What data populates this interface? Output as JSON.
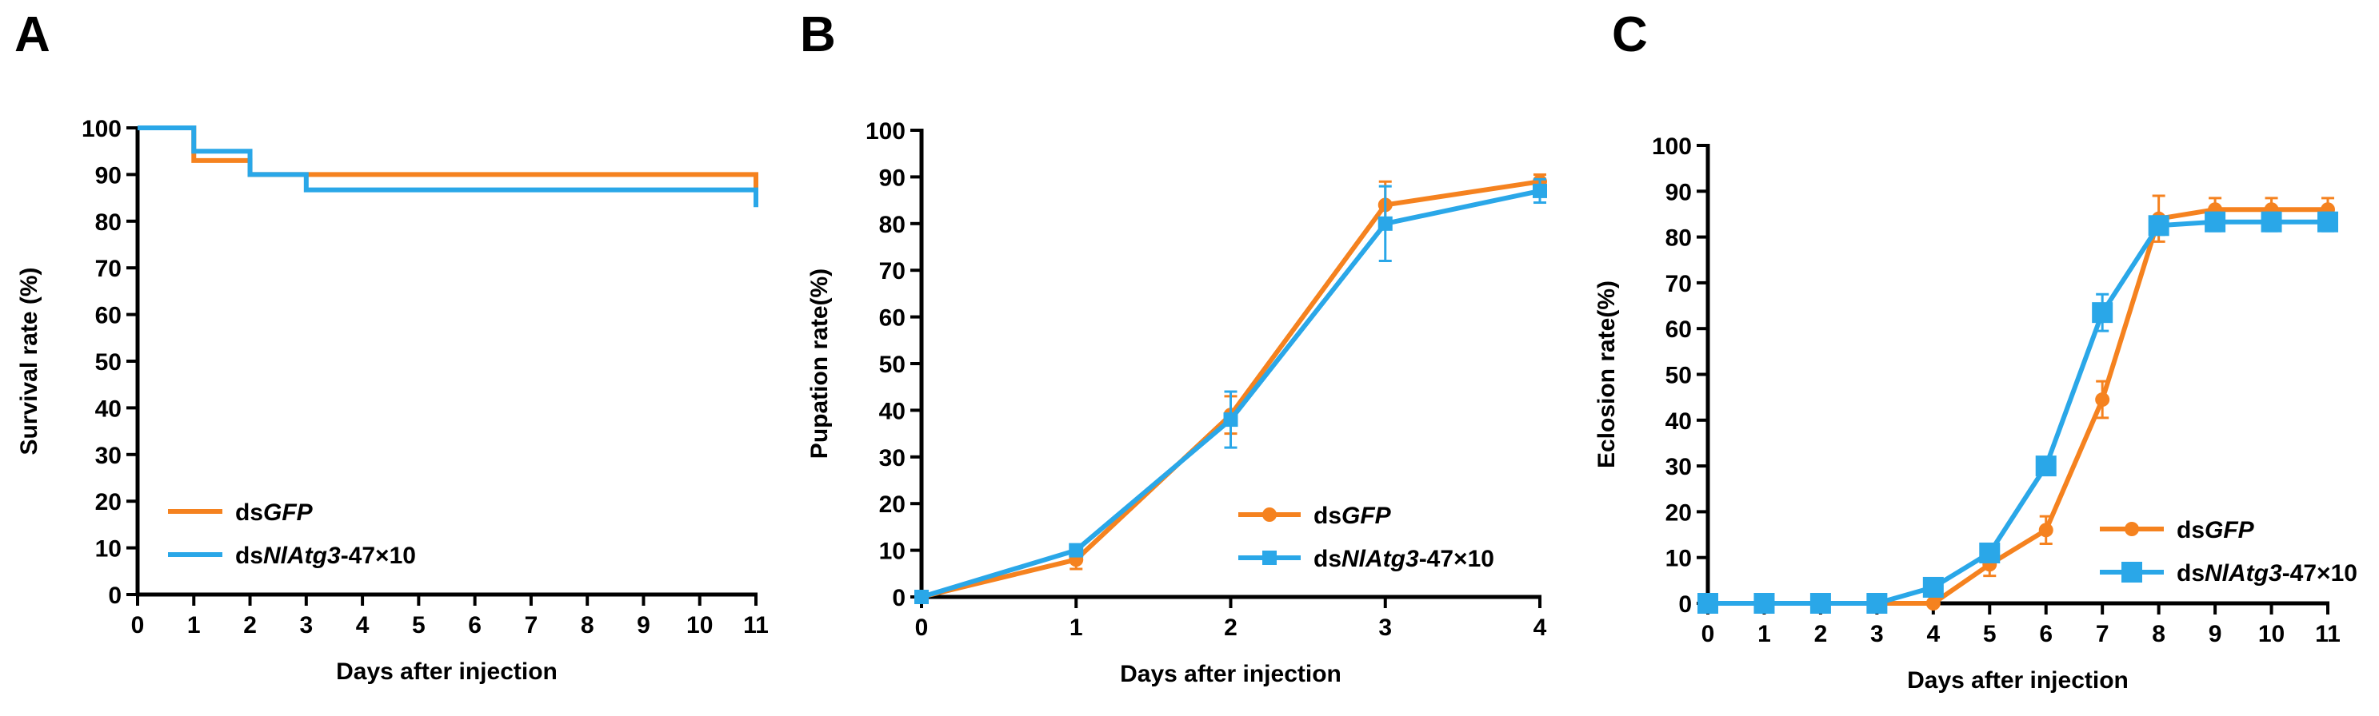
{
  "colors": {
    "orange": "#f5821f",
    "blue": "#2aa7e8",
    "axis": "#000000"
  },
  "chart_data": [
    {
      "panel": "A",
      "type": "line",
      "step": true,
      "title": "",
      "xlabel": "Days after injection",
      "ylabel": "Survival rate (%)",
      "xlim": [
        0,
        11
      ],
      "ylim": [
        0,
        100
      ],
      "xticks": [
        0,
        1,
        2,
        3,
        4,
        5,
        6,
        7,
        8,
        9,
        10,
        11
      ],
      "yticks": [
        0,
        10,
        20,
        30,
        40,
        50,
        60,
        70,
        80,
        90,
        100
      ],
      "grid": false,
      "legend_position": "bottom-left",
      "series": [
        {
          "name_prefix": "ds",
          "name_italic": "GFP",
          "name_suffix": "",
          "color": "#f5821f",
          "marker": "none",
          "x": [
            0,
            1,
            2,
            11
          ],
          "y": [
            100,
            93,
            90,
            90
          ],
          "end_drop": 86
        },
        {
          "name_prefix": "ds",
          "name_italic": "NlAtg3",
          "name_suffix": "-47×10",
          "color": "#2aa7e8",
          "marker": "none",
          "x": [
            0,
            1,
            2,
            3,
            11
          ],
          "y": [
            100,
            95,
            90,
            86.7,
            86.7
          ],
          "end_drop": 83
        }
      ]
    },
    {
      "panel": "B",
      "type": "line",
      "title": "",
      "xlabel": "Days after injection",
      "ylabel": "Pupation rate(%)",
      "xlim": [
        0,
        4
      ],
      "ylim": [
        0,
        100
      ],
      "xticks": [
        0,
        1,
        2,
        3,
        4
      ],
      "yticks": [
        0,
        10,
        20,
        30,
        40,
        50,
        60,
        70,
        80,
        90,
        100
      ],
      "grid": false,
      "legend_position": "bottom-right",
      "series": [
        {
          "name_prefix": "ds",
          "name_italic": "GFP",
          "name_suffix": "",
          "color": "#f5821f",
          "marker": "circle",
          "x": [
            0,
            1,
            2,
            3,
            4
          ],
          "y": [
            0,
            8,
            39,
            84,
            89
          ],
          "err": [
            0,
            2,
            4,
            5,
            1.5
          ]
        },
        {
          "name_prefix": "ds",
          "name_italic": "NlAtg3",
          "name_suffix": "-47×10",
          "color": "#2aa7e8",
          "marker": "square",
          "x": [
            0,
            1,
            2,
            3,
            4
          ],
          "y": [
            0,
            10,
            38,
            80,
            87
          ],
          "err": [
            0,
            1,
            6,
            8,
            2.5
          ]
        }
      ]
    },
    {
      "panel": "C",
      "type": "line",
      "title": "",
      "xlabel": "Days after injection",
      "ylabel": "Eclosion rate(%)",
      "xlim": [
        0,
        11
      ],
      "ylim": [
        0,
        100
      ],
      "xticks": [
        0,
        1,
        2,
        3,
        4,
        5,
        6,
        7,
        8,
        9,
        10,
        11
      ],
      "yticks": [
        0,
        10,
        20,
        30,
        40,
        50,
        60,
        70,
        80,
        90,
        100
      ],
      "grid": false,
      "legend_position": "bottom-right",
      "series": [
        {
          "name_prefix": "ds",
          "name_italic": "GFP",
          "name_suffix": "",
          "color": "#f5821f",
          "marker": "circle",
          "x": [
            0,
            1,
            2,
            3,
            4,
            5,
            6,
            7,
            8,
            9,
            10,
            11
          ],
          "y": [
            0,
            0,
            0,
            0,
            0,
            8.5,
            16,
            44.5,
            84,
            86,
            86,
            86
          ],
          "err": [
            0,
            0,
            0,
            0,
            0,
            2.5,
            3,
            4,
            5,
            2.5,
            2.5,
            2.5
          ]
        },
        {
          "name_prefix": "ds",
          "name_italic": "NlAtg3",
          "name_suffix": "-47×10",
          "color": "#2aa7e8",
          "marker": "square",
          "x": [
            0,
            1,
            2,
            3,
            4,
            5,
            6,
            7,
            8,
            9,
            10,
            11
          ],
          "y": [
            0,
            0,
            0,
            0,
            3.5,
            11,
            30,
            63.5,
            82.5,
            83.3,
            83.3,
            83.3
          ],
          "err": [
            0,
            0,
            0,
            0,
            0.5,
            1,
            1.5,
            4,
            2,
            2,
            2,
            2
          ]
        }
      ]
    }
  ]
}
